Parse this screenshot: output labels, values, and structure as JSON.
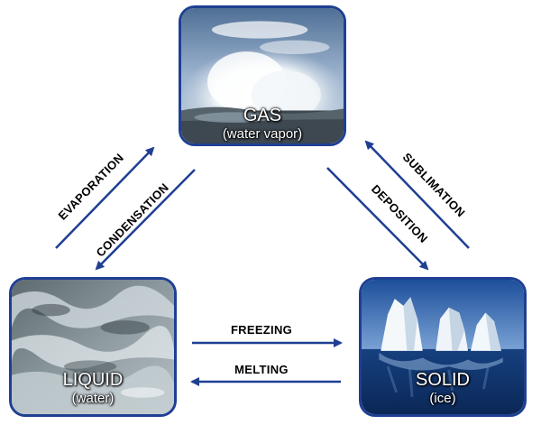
{
  "nodes": {
    "gas": {
      "name": "GAS",
      "sub": "(water vapor)"
    },
    "liquid": {
      "name": "LIQUID",
      "sub": "(water)"
    },
    "solid": {
      "name": "SOLID",
      "sub": "(ice)"
    }
  },
  "processes": {
    "evaporation": "EVAPORATION",
    "condensation": "CONDENSATION",
    "sublimation": "SUBLIMATION",
    "deposition": "DEPOSITION",
    "freezing": "FREEZING",
    "melting": "MELTING"
  },
  "colors": {
    "border": "#1f3f93",
    "arrow": "#1f3f93"
  }
}
